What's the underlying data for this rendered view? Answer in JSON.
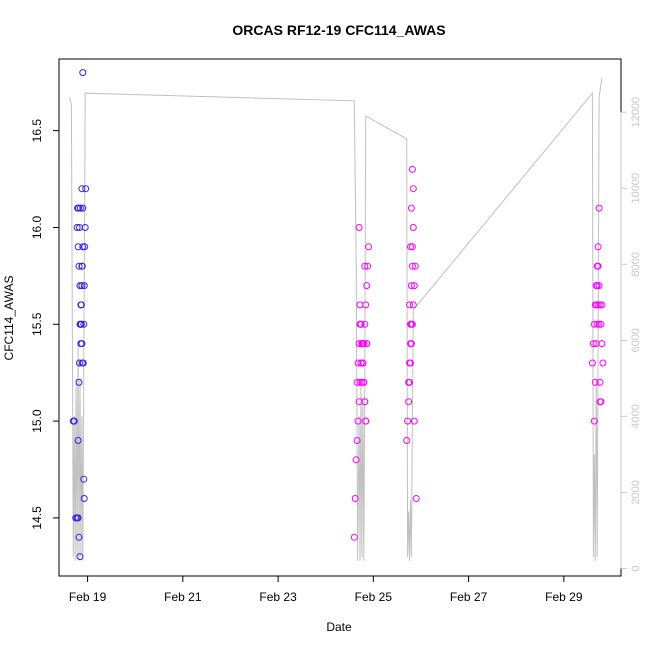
{
  "chart_data": {
    "type": "scatter",
    "title": "ORCAS RF12-19 CFC114_AWAS",
    "xlabel": "Date",
    "ylabel": "CFC114_AWAS",
    "x_ticks": [
      {
        "label": "Feb 19",
        "day": 19
      },
      {
        "label": "Feb 21",
        "day": 21
      },
      {
        "label": "Feb 23",
        "day": 23
      },
      {
        "label": "Feb 25",
        "day": 25
      },
      {
        "label": "Feb 27",
        "day": 27
      },
      {
        "label": "Feb 29",
        "day": 29
      }
    ],
    "xlim_days": [
      18.4,
      30.2
    ],
    "ylim": [
      14.2,
      16.87
    ],
    "y_ticks": [
      14.5,
      15.0,
      15.5,
      16.0,
      16.5
    ],
    "y_tick_labels": [
      "14.5",
      "15.0",
      "15.5",
      "16.0",
      "16.5"
    ],
    "y2lim": [
      -200,
      13400
    ],
    "y2_ticks": [
      0,
      2000,
      4000,
      6000,
      8000,
      10000,
      12000
    ],
    "y2_tick_labels": [
      "0",
      "2000",
      "4000",
      "6000",
      "8000",
      "10000",
      "12000"
    ],
    "series": [
      {
        "color": "#3a1fe6",
        "x_days": [
          18.7,
          18.72,
          18.75,
          18.78,
          18.8,
          18.82,
          18.83,
          18.84,
          18.85,
          18.86,
          18.87,
          18.88,
          18.89,
          18.9,
          18.78,
          18.79,
          18.81,
          18.8,
          18.82,
          18.84,
          18.86,
          18.87,
          18.88,
          18.89,
          18.91,
          18.92,
          18.93,
          18.94,
          18.95,
          18.96,
          18.83,
          18.85,
          18.88,
          18.9,
          18.92,
          18.93,
          18.8,
          18.82,
          18.84,
          18.86,
          18.88,
          18.9
        ],
        "values": [
          15.0,
          15.0,
          14.5,
          14.5,
          14.9,
          15.2,
          15.3,
          15.5,
          15.5,
          15.5,
          15.6,
          15.7,
          15.8,
          15.9,
          16.0,
          16.1,
          16.1,
          15.9,
          15.8,
          15.7,
          15.6,
          15.5,
          15.4,
          15.3,
          15.3,
          15.5,
          15.7,
          15.9,
          16.0,
          16.2,
          16.0,
          16.1,
          16.2,
          16.8,
          14.7,
          14.6,
          14.5,
          14.4,
          14.3,
          15.4,
          15.8,
          16.1
        ]
      },
      {
        "color": "#ff00ff",
        "x_days": [
          24.6,
          24.62,
          24.64,
          24.66,
          24.68,
          24.7,
          24.72,
          24.74,
          24.76,
          24.78,
          24.8,
          24.82,
          24.84,
          24.86,
          24.88,
          24.9,
          24.66,
          24.68,
          24.7,
          24.72,
          24.74,
          24.76,
          24.78,
          24.8,
          24.82,
          24.84,
          24.86,
          24.7,
          24.72,
          24.74,
          24.76,
          24.78,
          24.8,
          24.82,
          24.76,
          24.78,
          24.8,
          24.82,
          24.84,
          24.86,
          25.7,
          25.72,
          25.74,
          25.76,
          25.78,
          25.8,
          25.82,
          25.84,
          25.86,
          25.88,
          25.9,
          25.74,
          25.76,
          25.78,
          25.8,
          25.82,
          25.84,
          25.76,
          25.78,
          25.8,
          25.82,
          25.84,
          25.86,
          25.78,
          25.8,
          25.82,
          29.6,
          29.62,
          29.64,
          29.66,
          29.68,
          29.7,
          29.72,
          29.74,
          29.76,
          29.78,
          29.8,
          29.82,
          29.64,
          29.66,
          29.68,
          29.7,
          29.72,
          29.74,
          29.76,
          29.68,
          29.7,
          29.72,
          29.74,
          29.76,
          29.78,
          29.8
        ],
        "values": [
          14.4,
          14.6,
          14.8,
          14.9,
          15.0,
          15.1,
          15.2,
          15.3,
          15.4,
          15.4,
          15.4,
          15.5,
          15.6,
          15.7,
          15.8,
          15.9,
          15.2,
          15.3,
          15.4,
          15.5,
          15.5,
          15.4,
          15.3,
          15.2,
          15.1,
          15.0,
          15.4,
          16.0,
          15.6,
          15.5,
          15.4,
          15.3,
          15.2,
          15.1,
          15.2,
          15.3,
          15.4,
          15.8,
          15.0,
          15.4,
          14.9,
          15.0,
          15.1,
          15.2,
          15.3,
          15.4,
          15.5,
          15.6,
          15.7,
          15.8,
          14.6,
          15.2,
          15.3,
          15.5,
          15.7,
          15.9,
          16.0,
          15.6,
          15.9,
          16.1,
          16.3,
          16.2,
          15.0,
          15.4,
          15.5,
          15.8,
          15.3,
          15.4,
          15.5,
          15.6,
          15.7,
          15.8,
          15.9,
          16.1,
          15.6,
          15.5,
          15.4,
          15.3,
          15.0,
          15.2,
          15.4,
          15.5,
          15.6,
          15.7,
          15.1,
          15.6,
          15.7,
          15.8,
          15.5,
          15.2,
          15.1,
          15.6
        ]
      }
    ],
    "line_series": {
      "color": "#c0c0c0",
      "points": [
        [
          18.62,
          12400
        ],
        [
          18.66,
          12200
        ],
        [
          18.7,
          300
        ],
        [
          18.72,
          4000
        ],
        [
          18.74,
          200
        ],
        [
          18.76,
          5000
        ],
        [
          18.78,
          300
        ],
        [
          18.8,
          6000
        ],
        [
          18.82,
          200
        ],
        [
          18.84,
          5000
        ],
        [
          18.86,
          300
        ],
        [
          18.88,
          4000
        ],
        [
          18.9,
          200
        ],
        [
          18.95,
          12500
        ],
        [
          24.6,
          12300
        ],
        [
          24.64,
          8000
        ],
        [
          24.67,
          200
        ],
        [
          24.7,
          4000
        ],
        [
          24.72,
          200
        ],
        [
          24.74,
          5000
        ],
        [
          24.76,
          300
        ],
        [
          24.78,
          4500
        ],
        [
          24.8,
          200
        ],
        [
          24.82,
          5000
        ],
        [
          24.84,
          11900
        ],
        [
          25.7,
          11300
        ],
        [
          25.72,
          300
        ],
        [
          25.74,
          1500
        ],
        [
          25.76,
          200
        ],
        [
          25.78,
          1800
        ],
        [
          25.8,
          300
        ],
        [
          25.82,
          4000
        ],
        [
          25.84,
          6800
        ],
        [
          29.6,
          12500
        ],
        [
          29.62,
          300
        ],
        [
          29.64,
          3000
        ],
        [
          29.66,
          200
        ],
        [
          29.68,
          5000
        ],
        [
          29.7,
          300
        ],
        [
          29.72,
          6000
        ],
        [
          29.74,
          12400
        ],
        [
          29.8,
          12900
        ]
      ]
    }
  }
}
